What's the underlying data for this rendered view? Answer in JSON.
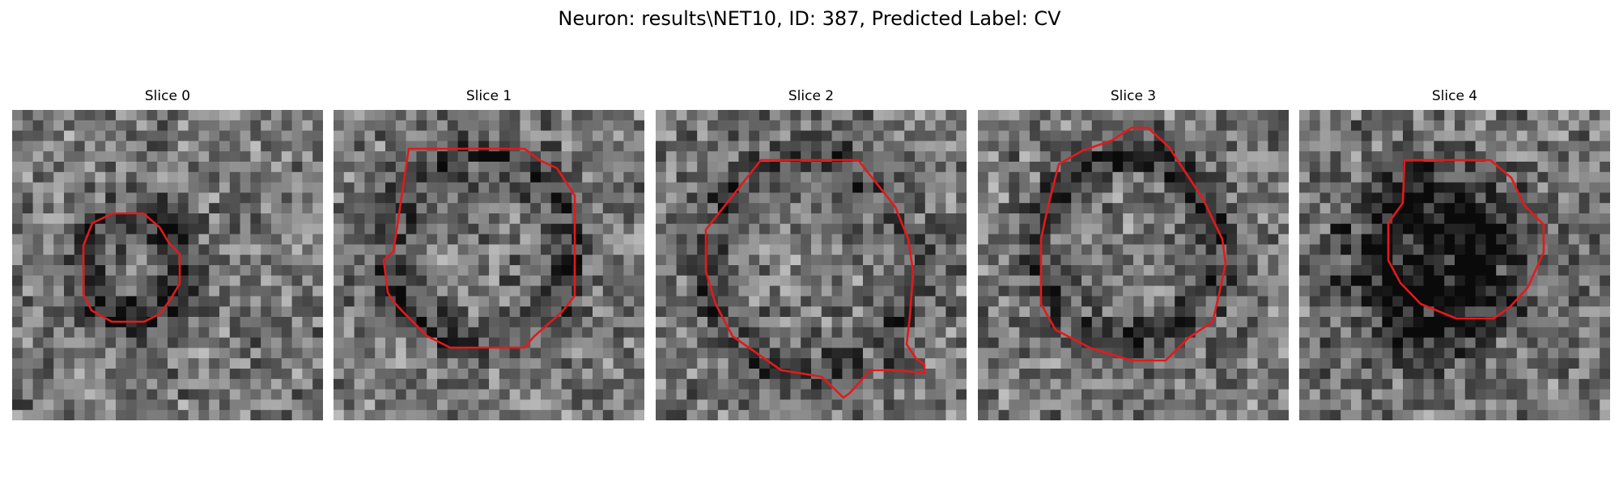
{
  "figure": {
    "title": "Neuron: results\\NET10, ID: 387, Predicted Label: CV"
  },
  "contour_color": "#e31a1c",
  "panels": [
    {
      "title": "Slice 0"
    },
    {
      "title": "Slice 1"
    },
    {
      "title": "Slice 2"
    },
    {
      "title": "Slice 3"
    },
    {
      "title": "Slice 4"
    }
  ]
}
